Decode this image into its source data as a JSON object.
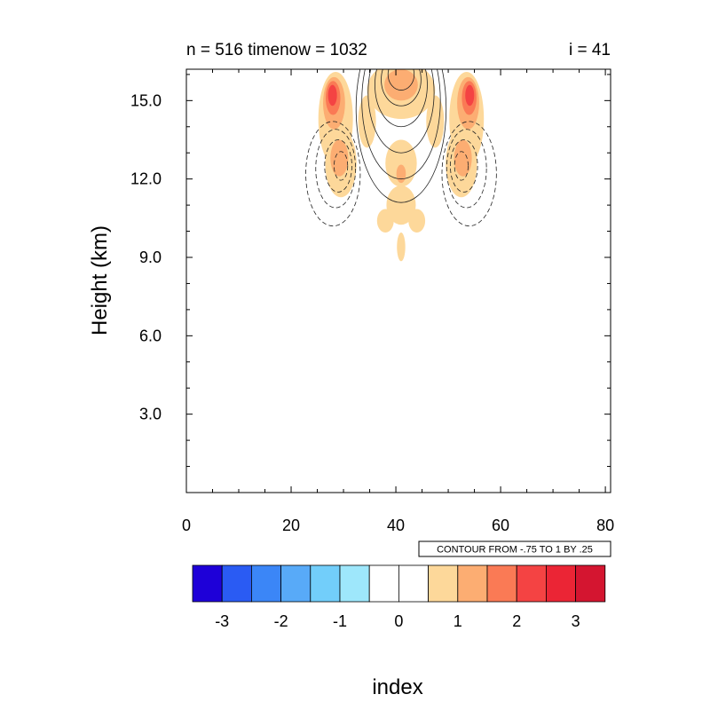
{
  "chart_data": {
    "type": "heatmap",
    "title_left": "n = 516 timenow = 1032",
    "title_right": "i = 41",
    "xlabel": "index",
    "ylabel": "Height (km)",
    "xlim": [
      0,
      81
    ],
    "ylim": [
      0,
      16.2
    ],
    "x_ticks": [
      0,
      20,
      40,
      60,
      80
    ],
    "x_tick_labels": [
      "0",
      "20",
      "40",
      "60",
      "80"
    ],
    "y_ticks": [
      3,
      6,
      9,
      12,
      15
    ],
    "y_tick_labels": [
      "3.0",
      "6.0",
      "9.0",
      "12.0",
      "15.0"
    ],
    "contour_note": "CONTOUR FROM -.75 TO 1 BY .25",
    "colorbar": {
      "labels": [
        "-3",
        "-2",
        "-1",
        "0",
        "1",
        "2",
        "3"
      ],
      "colors": [
        "#1e00d8",
        "#2a5bf3",
        "#3b86f7",
        "#58aaf8",
        "#72cefa",
        "#9ee7fb",
        "#ffffff",
        "#ffffff",
        "#fdd89a",
        "#fcad72",
        "#fa7a55",
        "#f44343",
        "#eb2535",
        "#d41530"
      ]
    },
    "filled_features": [
      {
        "level": 1,
        "color": "#fdd89a",
        "cx": 28.5,
        "cy": 14.3,
        "rx": 3.3,
        "ry": 1.8
      },
      {
        "level": 1,
        "color": "#fdd89a",
        "cx": 53.5,
        "cy": 14.3,
        "rx": 3.3,
        "ry": 1.8
      },
      {
        "level": 1,
        "color": "#fdd89a",
        "cx": 29.5,
        "cy": 12.6,
        "rx": 3.0,
        "ry": 1.3
      },
      {
        "level": 1,
        "color": "#fdd89a",
        "cx": 52.5,
        "cy": 12.6,
        "rx": 3.0,
        "ry": 1.3
      },
      {
        "level": 1,
        "color": "#fdd89a",
        "cx": 41,
        "cy": 15.4,
        "rx": 6.5,
        "ry": 1.1
      },
      {
        "level": 1,
        "color": "#fdd89a",
        "cx": 34.5,
        "cy": 14.2,
        "rx": 1.7,
        "ry": 1.0
      },
      {
        "level": 1,
        "color": "#fdd89a",
        "cx": 47.5,
        "cy": 14.2,
        "rx": 1.7,
        "ry": 1.0
      },
      {
        "level": 1,
        "color": "#fdd89a",
        "cx": 41,
        "cy": 12.6,
        "rx": 3.0,
        "ry": 0.9
      },
      {
        "level": 1,
        "color": "#fdd89a",
        "cx": 41,
        "cy": 11.0,
        "rx": 2.8,
        "ry": 0.75
      },
      {
        "level": 1,
        "color": "#fdd89a",
        "cx": 38.0,
        "cy": 10.4,
        "rx": 1.6,
        "ry": 0.45
      },
      {
        "level": 1,
        "color": "#fdd89a",
        "cx": 44.0,
        "cy": 10.4,
        "rx": 1.6,
        "ry": 0.45
      },
      {
        "level": 1,
        "color": "#fdd89a",
        "cx": 41,
        "cy": 9.4,
        "rx": 0.8,
        "ry": 0.55
      },
      {
        "level": 1.5,
        "color": "#fcad72",
        "cx": 28.2,
        "cy": 14.9,
        "rx": 2.1,
        "ry": 1.0
      },
      {
        "level": 1.5,
        "color": "#fcad72",
        "cx": 53.8,
        "cy": 14.9,
        "rx": 2.1,
        "ry": 1.0
      },
      {
        "level": 1.5,
        "color": "#fcad72",
        "cx": 29.2,
        "cy": 12.8,
        "rx": 1.7,
        "ry": 0.7
      },
      {
        "level": 1.5,
        "color": "#fcad72",
        "cx": 52.8,
        "cy": 12.8,
        "rx": 1.7,
        "ry": 0.7
      },
      {
        "level": 1.5,
        "color": "#fcad72",
        "cx": 41,
        "cy": 15.6,
        "rx": 3.2,
        "ry": 0.6
      },
      {
        "level": 1.5,
        "color": "#fcad72",
        "cx": 41,
        "cy": 12.2,
        "rx": 0.9,
        "ry": 0.35
      },
      {
        "level": 2,
        "color": "#fa7a55",
        "cx": 28.0,
        "cy": 15.1,
        "rx": 1.4,
        "ry": 0.65
      },
      {
        "level": 2,
        "color": "#fa7a55",
        "cx": 54.0,
        "cy": 15.1,
        "rx": 1.4,
        "ry": 0.65
      },
      {
        "level": 2.5,
        "color": "#f44343",
        "cx": 27.9,
        "cy": 15.2,
        "rx": 0.85,
        "ry": 0.4
      },
      {
        "level": 2.5,
        "color": "#f44343",
        "cx": 54.1,
        "cy": 15.2,
        "rx": 0.85,
        "ry": 0.4
      }
    ],
    "contour_lines": [
      {
        "dashed": false,
        "cx": 41,
        "cy": 16.0,
        "rx": 2.5,
        "ry": 0.6
      },
      {
        "dashed": false,
        "cx": 41,
        "cy": 15.8,
        "rx": 3.8,
        "ry": 1.0
      },
      {
        "dashed": false,
        "cx": 41,
        "cy": 15.6,
        "rx": 5.0,
        "ry": 1.6
      },
      {
        "dashed": false,
        "cx": 41,
        "cy": 15.3,
        "rx": 6.3,
        "ry": 2.3
      },
      {
        "dashed": false,
        "cx": 41,
        "cy": 15.0,
        "rx": 7.5,
        "ry": 3.0
      },
      {
        "dashed": false,
        "cx": 41,
        "cy": 14.7,
        "rx": 8.6,
        "ry": 3.6
      },
      {
        "dashed": true,
        "cx": 29.5,
        "cy": 12.5,
        "rx": 1.3,
        "ry": 0.55
      },
      {
        "dashed": true,
        "cx": 29.0,
        "cy": 12.5,
        "rx": 2.6,
        "ry": 1.0
      },
      {
        "dashed": true,
        "cx": 28.5,
        "cy": 12.4,
        "rx": 3.8,
        "ry": 1.5
      },
      {
        "dashed": true,
        "cx": 28.0,
        "cy": 12.2,
        "rx": 5.2,
        "ry": 2.0
      },
      {
        "dashed": true,
        "cx": 52.5,
        "cy": 12.5,
        "rx": 1.3,
        "ry": 0.55
      },
      {
        "dashed": true,
        "cx": 53.0,
        "cy": 12.5,
        "rx": 2.6,
        "ry": 1.0
      },
      {
        "dashed": true,
        "cx": 53.5,
        "cy": 12.4,
        "rx": 3.8,
        "ry": 1.5
      },
      {
        "dashed": true,
        "cx": 54.0,
        "cy": 12.2,
        "rx": 5.2,
        "ry": 2.0
      }
    ]
  }
}
